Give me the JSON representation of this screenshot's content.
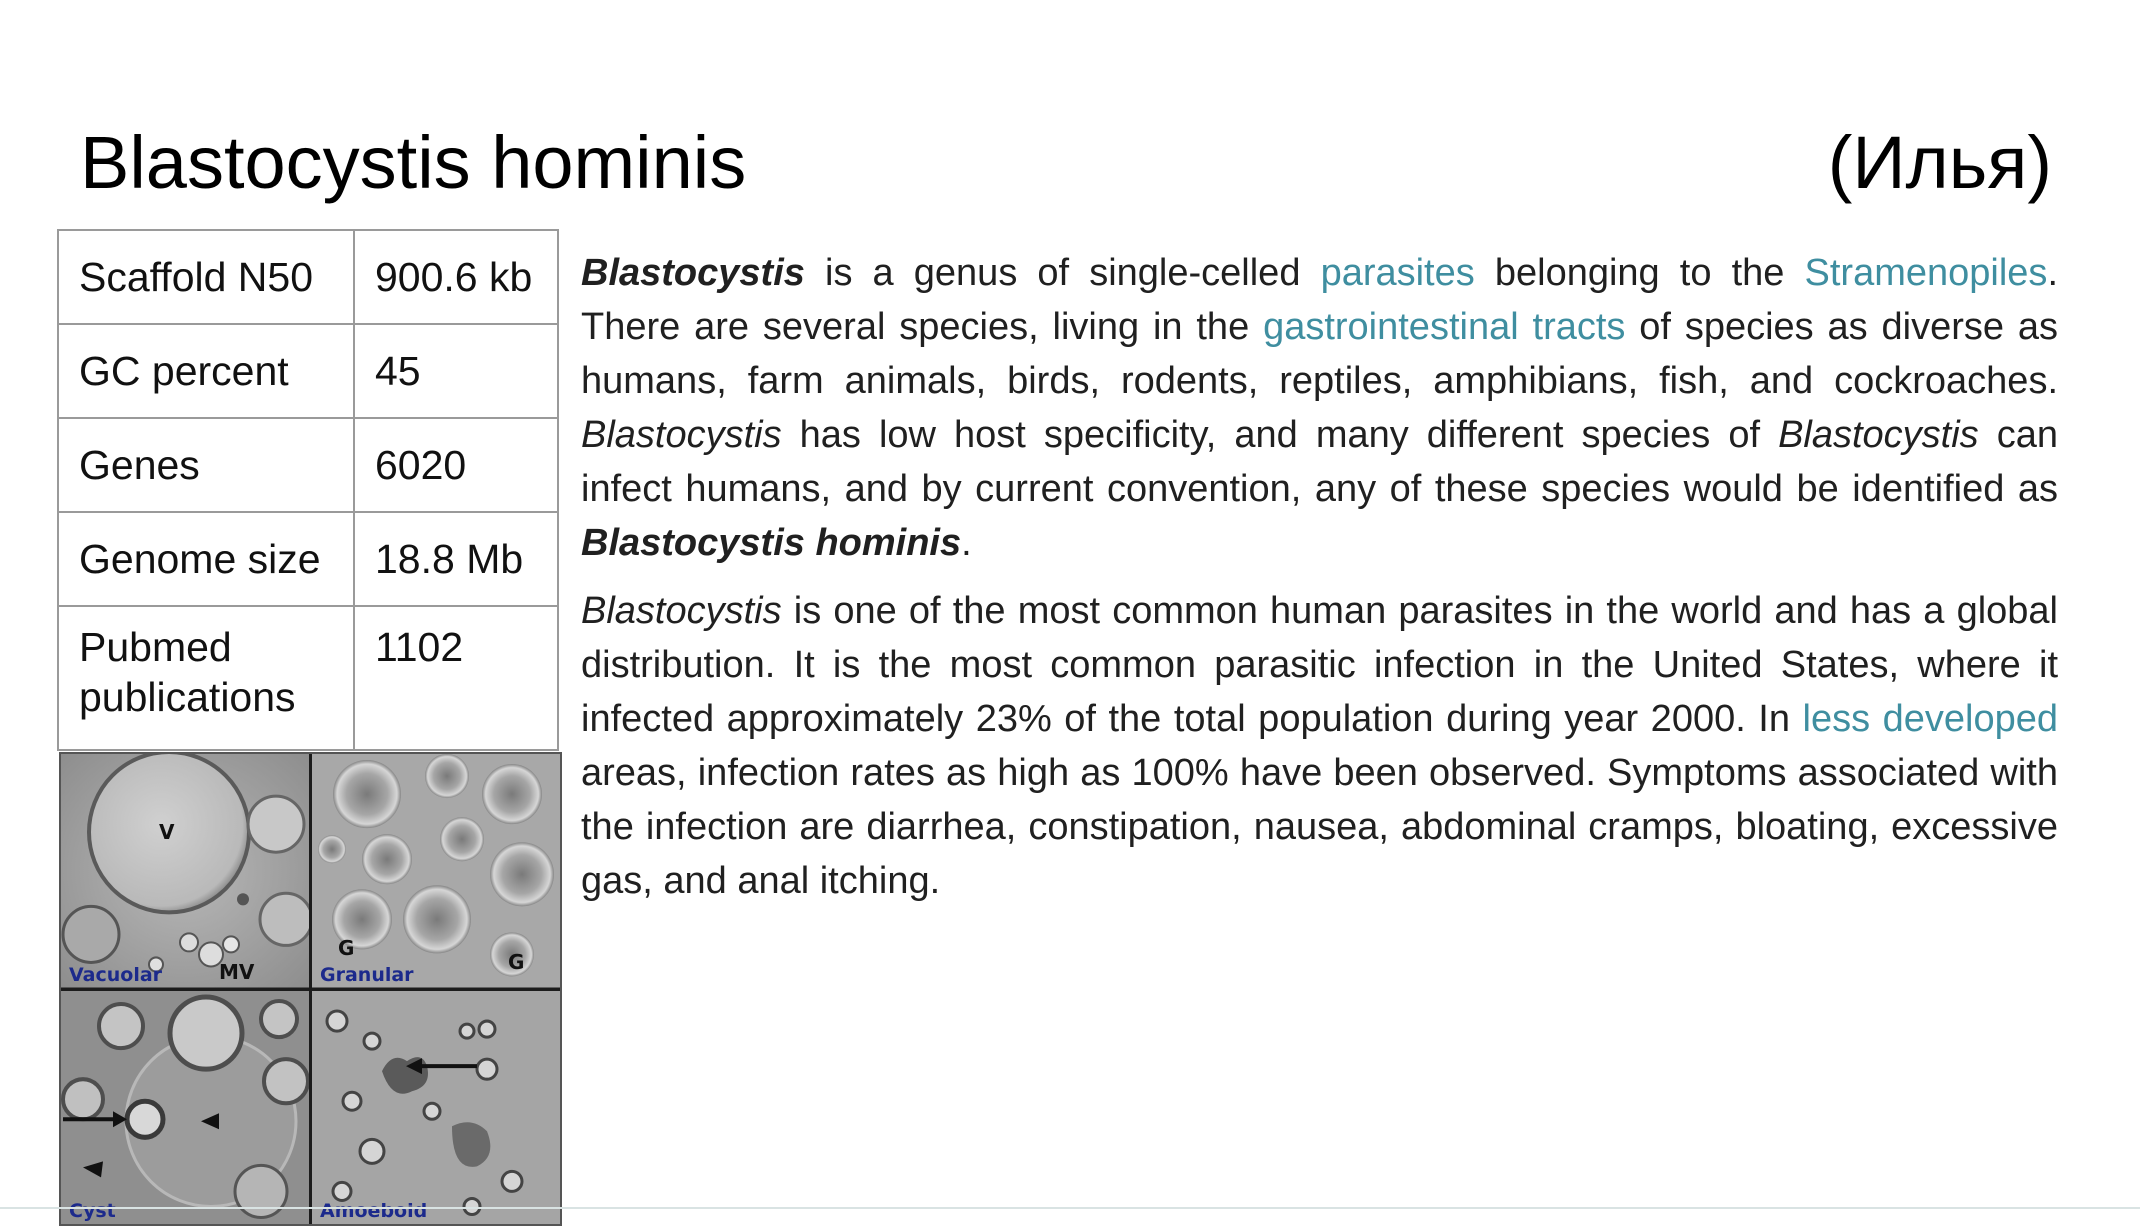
{
  "slide": {
    "title": "Blastocystis hominis",
    "author": "(Илья)"
  },
  "stats_table": {
    "rows": [
      {
        "label": "Scaffold N50",
        "value": "900.6 kb"
      },
      {
        "label": "GC percent",
        "value": "45"
      },
      {
        "label": "Genes",
        "value": "6020"
      },
      {
        "label": "Genome size",
        "value": "18.8 Mb"
      },
      {
        "label": "Pubmed publications",
        "value": "1102"
      }
    ]
  },
  "micrograph": {
    "panels": [
      {
        "label": "Vacuolar",
        "marks": [
          "V",
          "MV"
        ]
      },
      {
        "label": "Granular",
        "marks": [
          "G",
          "G"
        ]
      },
      {
        "label": "Cyst"
      },
      {
        "label": "Amoeboid"
      }
    ]
  },
  "paragraph1": {
    "s1_bold": "Blastocystis",
    "s2": " is a genus of single-celled ",
    "link1": "parasites",
    "s3": " belonging to the ",
    "link2": "Stramenopiles",
    "s4": ". There are several species, living in the ",
    "link3": "gastrointestinal tracts",
    "s5": " of species as diverse as humans, farm animals, birds, rodents, reptiles, amphibians, fish, and cockroaches. ",
    "s6_italic": "Blastocystis",
    "s7": " has low host specificity, and many different species of ",
    "s8_italic": "Blastocystis",
    "s9": " can infect humans, and by current convention, any of these species would be identified as ",
    "s10_bold_italic": "Blastocystis hominis",
    "s11": "."
  },
  "paragraph2": {
    "s1_italic": "Blastocystis",
    "s2": " is one of the most common human parasites in the world and has a global distribution. It is the most common parasitic infection in the United States, where it infected approximately 23% of the total population during year 2000. In ",
    "link1": "less developed",
    "s3": " areas, infection rates as high as 100% have been observed. Symptoms associated with the infection are diarrhea, constipation, nausea, abdominal cramps, bloating, excessive gas, and anal itching."
  },
  "colors": {
    "link": "#3f8ea0",
    "text": "#202020",
    "table_border": "#9a9a9a"
  }
}
